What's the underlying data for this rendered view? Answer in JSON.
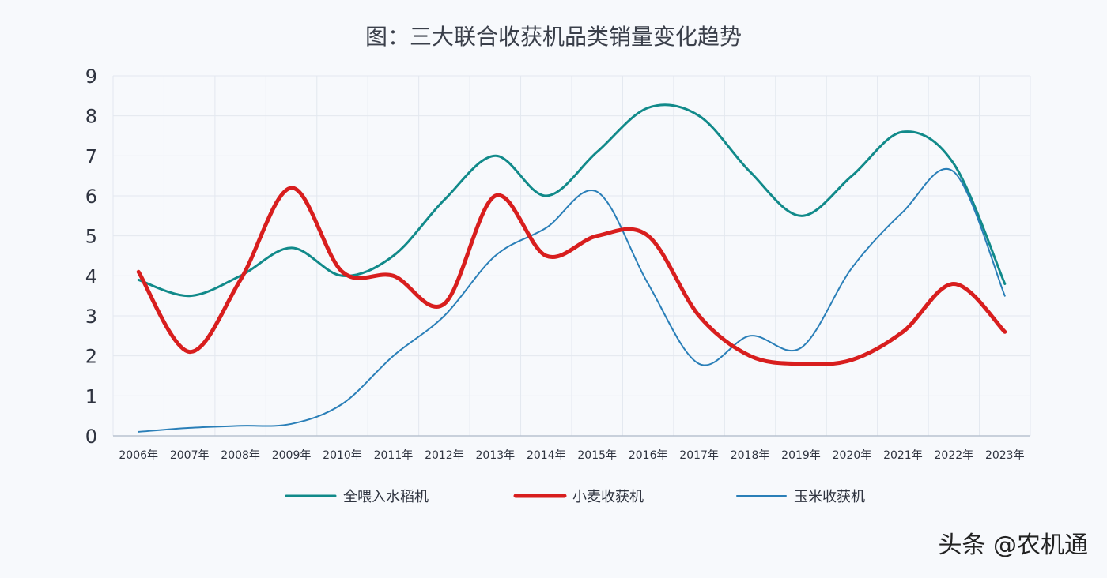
{
  "chart_data": {
    "type": "line",
    "title": "图：三大联合收获机品类销量变化趋势",
    "xlabel": "",
    "ylabel": "",
    "categories": [
      "2006年",
      "2007年",
      "2008年",
      "2009年",
      "2010年",
      "2011年",
      "2012年",
      "2013年",
      "2014年",
      "2015年",
      "2016年",
      "2017年",
      "2018年",
      "2019年",
      "2020年",
      "2021年",
      "2022年",
      "2023年"
    ],
    "ylim": [
      0,
      9
    ],
    "yticks": [
      0,
      1,
      2,
      3,
      4,
      5,
      6,
      7,
      8,
      9
    ],
    "grid": true,
    "legend_position": "bottom",
    "series": [
      {
        "name": "全喂入水稻机",
        "color": "#118a8a",
        "stroke_width": 3,
        "values": [
          3.9,
          3.5,
          4.0,
          4.7,
          4.0,
          4.5,
          5.9,
          7.0,
          6.0,
          7.1,
          8.2,
          8.0,
          6.6,
          5.5,
          6.5,
          7.6,
          6.8,
          3.8
        ]
      },
      {
        "name": "小麦收获机",
        "color": "#d81e1e",
        "stroke_width": 5,
        "values": [
          4.1,
          2.1,
          3.9,
          6.2,
          4.1,
          4.0,
          3.3,
          6.0,
          4.5,
          5.0,
          5.0,
          3.0,
          2.0,
          1.8,
          1.9,
          2.6,
          3.8,
          2.6
        ]
      },
      {
        "name": "玉米收获机",
        "color": "#2a7fb8",
        "stroke_width": 2,
        "values": [
          0.1,
          0.2,
          0.25,
          0.3,
          0.8,
          2.0,
          3.0,
          4.5,
          5.2,
          6.1,
          3.8,
          1.8,
          2.5,
          2.2,
          4.2,
          5.6,
          6.6,
          3.5
        ]
      }
    ]
  },
  "watermark": "头条 @农机通"
}
